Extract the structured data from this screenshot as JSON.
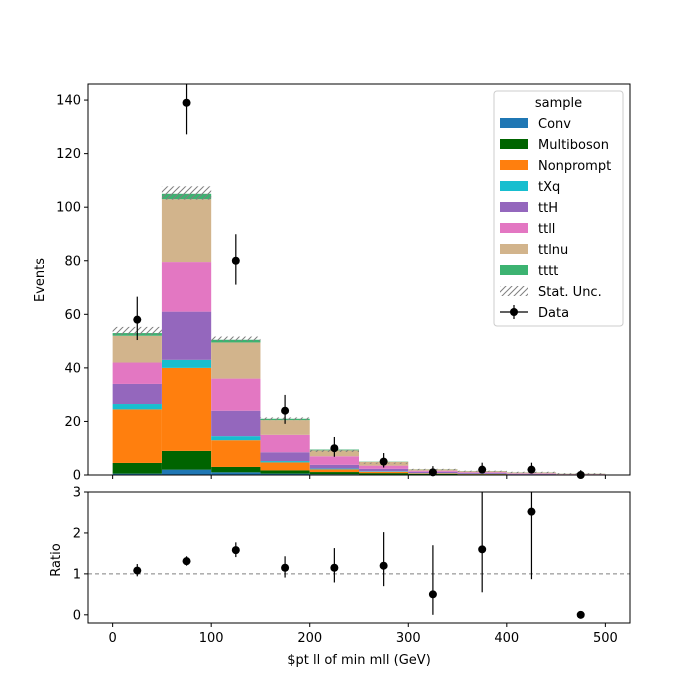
{
  "chart_data": [
    {
      "type": "bar",
      "stacked": true,
      "xlabel": "",
      "ylabel": "Events",
      "xlim": [
        -25,
        525
      ],
      "ylim": [
        0,
        146
      ],
      "yticks": [
        0,
        20,
        40,
        60,
        80,
        100,
        120,
        140
      ],
      "bin_edges": [
        0,
        50,
        100,
        150,
        200,
        250,
        300,
        350,
        400,
        450,
        500
      ],
      "legend": {
        "title": "sample",
        "position": "top-right"
      },
      "series": [
        {
          "name": "Conv",
          "color": "#1f77b4",
          "values": [
            0.5,
            2,
            1,
            0.5,
            0.3,
            0.2,
            0.1,
            0.1,
            0.05,
            0.02
          ]
        },
        {
          "name": "Multiboson",
          "color": "#006400",
          "values": [
            4,
            7,
            2,
            1.2,
            0.8,
            0.5,
            0.3,
            0.2,
            0.1,
            0.05
          ]
        },
        {
          "name": "Nonprompt",
          "color": "#ff7f0e",
          "values": [
            20,
            31,
            10,
            3,
            1,
            0.5,
            0.2,
            0.1,
            0.05,
            0.03
          ]
        },
        {
          "name": "tXq",
          "color": "#17becf",
          "values": [
            2,
            3,
            1.5,
            0.5,
            0.3,
            0.2,
            0.1,
            0.05,
            0.03,
            0.02
          ]
        },
        {
          "name": "ttH",
          "color": "#9467bd",
          "values": [
            7.5,
            18,
            9.5,
            3.3,
            1.4,
            0.9,
            0.5,
            0.3,
            0.2,
            0.1
          ]
        },
        {
          "name": "ttll",
          "color": "#e377c2",
          "values": [
            8,
            18.5,
            12,
            6.5,
            3.2,
            1.2,
            0.4,
            0.3,
            0.2,
            0.1
          ]
        },
        {
          "name": "ttlnu",
          "color": "#d2b48c",
          "values": [
            10,
            23.5,
            13.5,
            5.5,
            2.2,
            1.4,
            0.5,
            0.4,
            0.3,
            0.15
          ]
        },
        {
          "name": "tttt",
          "color": "#3cb371",
          "values": [
            1,
            2,
            1,
            0.5,
            0.3,
            0.1,
            0.05,
            0.05,
            0.04,
            0.03
          ]
        }
      ],
      "stat_unc": {
        "name": "Stat. Unc.",
        "down": [
          52.3,
          102.8,
          50.0,
          20.5,
          8.6,
          4.2,
          1.8,
          1.2,
          0.7,
          0.3
        ],
        "up": [
          55.3,
          107.8,
          51.7,
          21.5,
          9.4,
          4.6,
          2.3,
          1.6,
          1.2,
          0.7
        ]
      },
      "data": {
        "name": "Data",
        "x": [
          25,
          75,
          125,
          175,
          225,
          275,
          325,
          375,
          425,
          475
        ],
        "y": [
          58,
          139,
          80,
          24,
          10,
          5,
          1,
          2,
          2,
          0
        ],
        "err_low": [
          7.6,
          11.8,
          8.9,
          4.9,
          3.2,
          2.2,
          1.0,
          1.4,
          1.4,
          0
        ],
        "err_high": [
          8.6,
          12.8,
          9.9,
          5.9,
          4.2,
          3.2,
          2.3,
          2.6,
          2.6,
          1.8
        ]
      }
    },
    {
      "type": "scatter",
      "xlabel": "$pt ll of min mll (GeV)",
      "ylabel": "Ratio",
      "xlim": [
        -25,
        525
      ],
      "ylim": [
        -0.2,
        3
      ],
      "xticks": [
        0,
        100,
        200,
        300,
        400,
        500
      ],
      "yticks": [
        0,
        1,
        2,
        3
      ],
      "reference_line": 1,
      "x": [
        25,
        75,
        125,
        175,
        225,
        275,
        325,
        375,
        425,
        475
      ],
      "y": [
        1.08,
        1.31,
        1.58,
        1.15,
        1.15,
        1.2,
        0.5,
        1.6,
        2.52,
        0
      ],
      "err_low": [
        0.14,
        0.11,
        0.17,
        0.24,
        0.36,
        0.5,
        0.5,
        1.05,
        1.65,
        0
      ],
      "err_high": [
        0.16,
        0.12,
        0.19,
        0.28,
        0.48,
        0.82,
        1.2,
        1.4,
        1.9,
        0
      ]
    }
  ]
}
